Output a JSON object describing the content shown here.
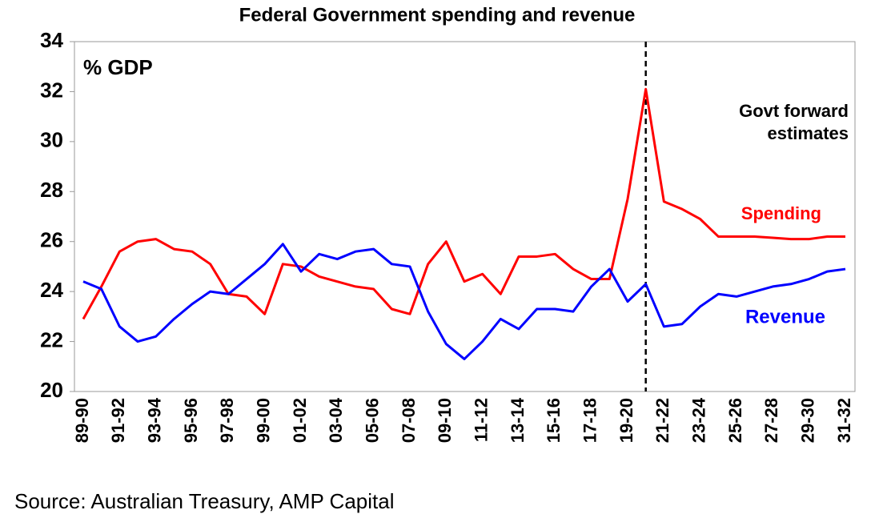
{
  "chart_data": {
    "type": "line",
    "title": "Federal Government spending and revenue",
    "y_label": "% GDP",
    "annotations": [
      "Govt forward",
      "estimates"
    ],
    "source": "Source: Australian Treasury, AMP Capital",
    "categories": [
      "89-90",
      null,
      "91-92",
      null,
      "93-94",
      null,
      "95-96",
      null,
      "97-98",
      null,
      "99-00",
      null,
      "01-02",
      null,
      "03-04",
      null,
      "05-06",
      null,
      "07-08",
      null,
      "09-10",
      null,
      "11-12",
      null,
      "13-14",
      null,
      "15-16",
      null,
      "17-18",
      null,
      "19-20",
      null,
      "21-22",
      null,
      "23-24",
      null,
      "25-26",
      null,
      "27-28",
      null,
      "29-30",
      null,
      "31-32"
    ],
    "series": [
      {
        "name": "Spending",
        "color": "#ff0000",
        "values": [
          22.9,
          24.2,
          25.6,
          26.0,
          26.1,
          25.7,
          25.6,
          25.1,
          23.9,
          23.8,
          23.1,
          25.1,
          25.0,
          24.6,
          24.4,
          24.2,
          24.1,
          23.3,
          23.1,
          25.1,
          26.0,
          24.4,
          24.7,
          23.9,
          25.4,
          25.4,
          25.5,
          24.9,
          24.5,
          24.5,
          27.7,
          32.1,
          27.6,
          27.3,
          26.9,
          26.2,
          26.2,
          26.2,
          26.15,
          26.1,
          26.1,
          26.2,
          26.2
        ]
      },
      {
        "name": "Revenue",
        "color": "#0000ff",
        "values": [
          24.4,
          24.1,
          22.6,
          22.0,
          22.2,
          22.9,
          23.5,
          24.0,
          23.9,
          24.5,
          25.1,
          25.9,
          24.8,
          25.5,
          25.3,
          25.6,
          25.7,
          25.1,
          25.0,
          23.2,
          21.9,
          21.3,
          22.0,
          22.9,
          22.5,
          23.3,
          23.3,
          23.2,
          24.2,
          24.9,
          23.6,
          24.3,
          22.6,
          22.7,
          23.4,
          23.9,
          23.8,
          24.0,
          24.2,
          24.3,
          24.5,
          24.8,
          24.9
        ]
      }
    ],
    "ylim": [
      20,
      34
    ],
    "yticks": [
      20,
      22,
      24,
      26,
      28,
      30,
      32,
      34
    ],
    "grid": false
  }
}
